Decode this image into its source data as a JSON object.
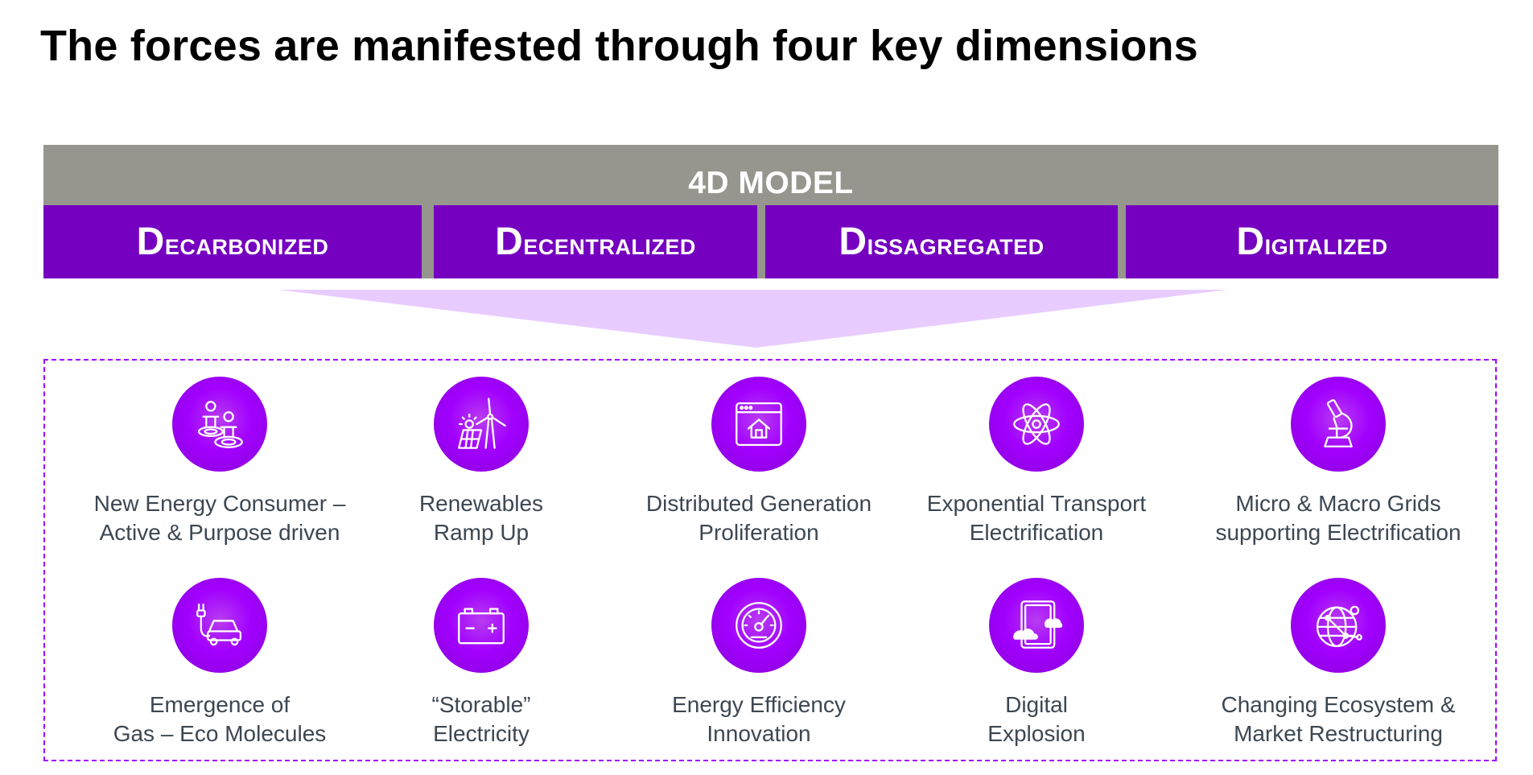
{
  "title": "The forces are manifested through four key dimensions",
  "model": {
    "label": "4D MODEL",
    "dimensions": [
      "Decarbonized",
      "Decentralized",
      "Dissagregated",
      "Digitalized"
    ]
  },
  "colors": {
    "purple_dark": "#7500c0",
    "purple_bright": "#a100ff",
    "funnel": "#e8ccff",
    "gray_bar": "#96968e",
    "text": "#3c4752"
  },
  "items": [
    {
      "icon": "people-target-icon",
      "lines": [
        "New Energy Consumer –",
        "Active & Purpose driven"
      ]
    },
    {
      "icon": "wind-solar-icon",
      "lines": [
        "Renewables",
        "Ramp Up"
      ]
    },
    {
      "icon": "window-house-icon",
      "lines": [
        "Distributed Generation",
        "Proliferation"
      ]
    },
    {
      "icon": "atom-icon",
      "lines": [
        "Exponential Transport",
        "Electrification"
      ]
    },
    {
      "icon": "microscope-icon",
      "lines": [
        "Micro & Macro Grids",
        "supporting Electrification"
      ]
    },
    {
      "icon": "plug-car-icon",
      "lines": [
        "Emergence of",
        "Gas – Eco Molecules"
      ]
    },
    {
      "icon": "battery-icon",
      "lines": [
        "“Storable”",
        "Electricity"
      ]
    },
    {
      "icon": "gauge-icon",
      "lines": [
        "Energy Efficiency",
        "Innovation"
      ]
    },
    {
      "icon": "tablet-cloud-icon",
      "lines": [
        "Digital",
        "Explosion"
      ]
    },
    {
      "icon": "globe-network-icon",
      "lines": [
        "Changing Ecosystem &",
        "Market Restructuring"
      ]
    }
  ]
}
